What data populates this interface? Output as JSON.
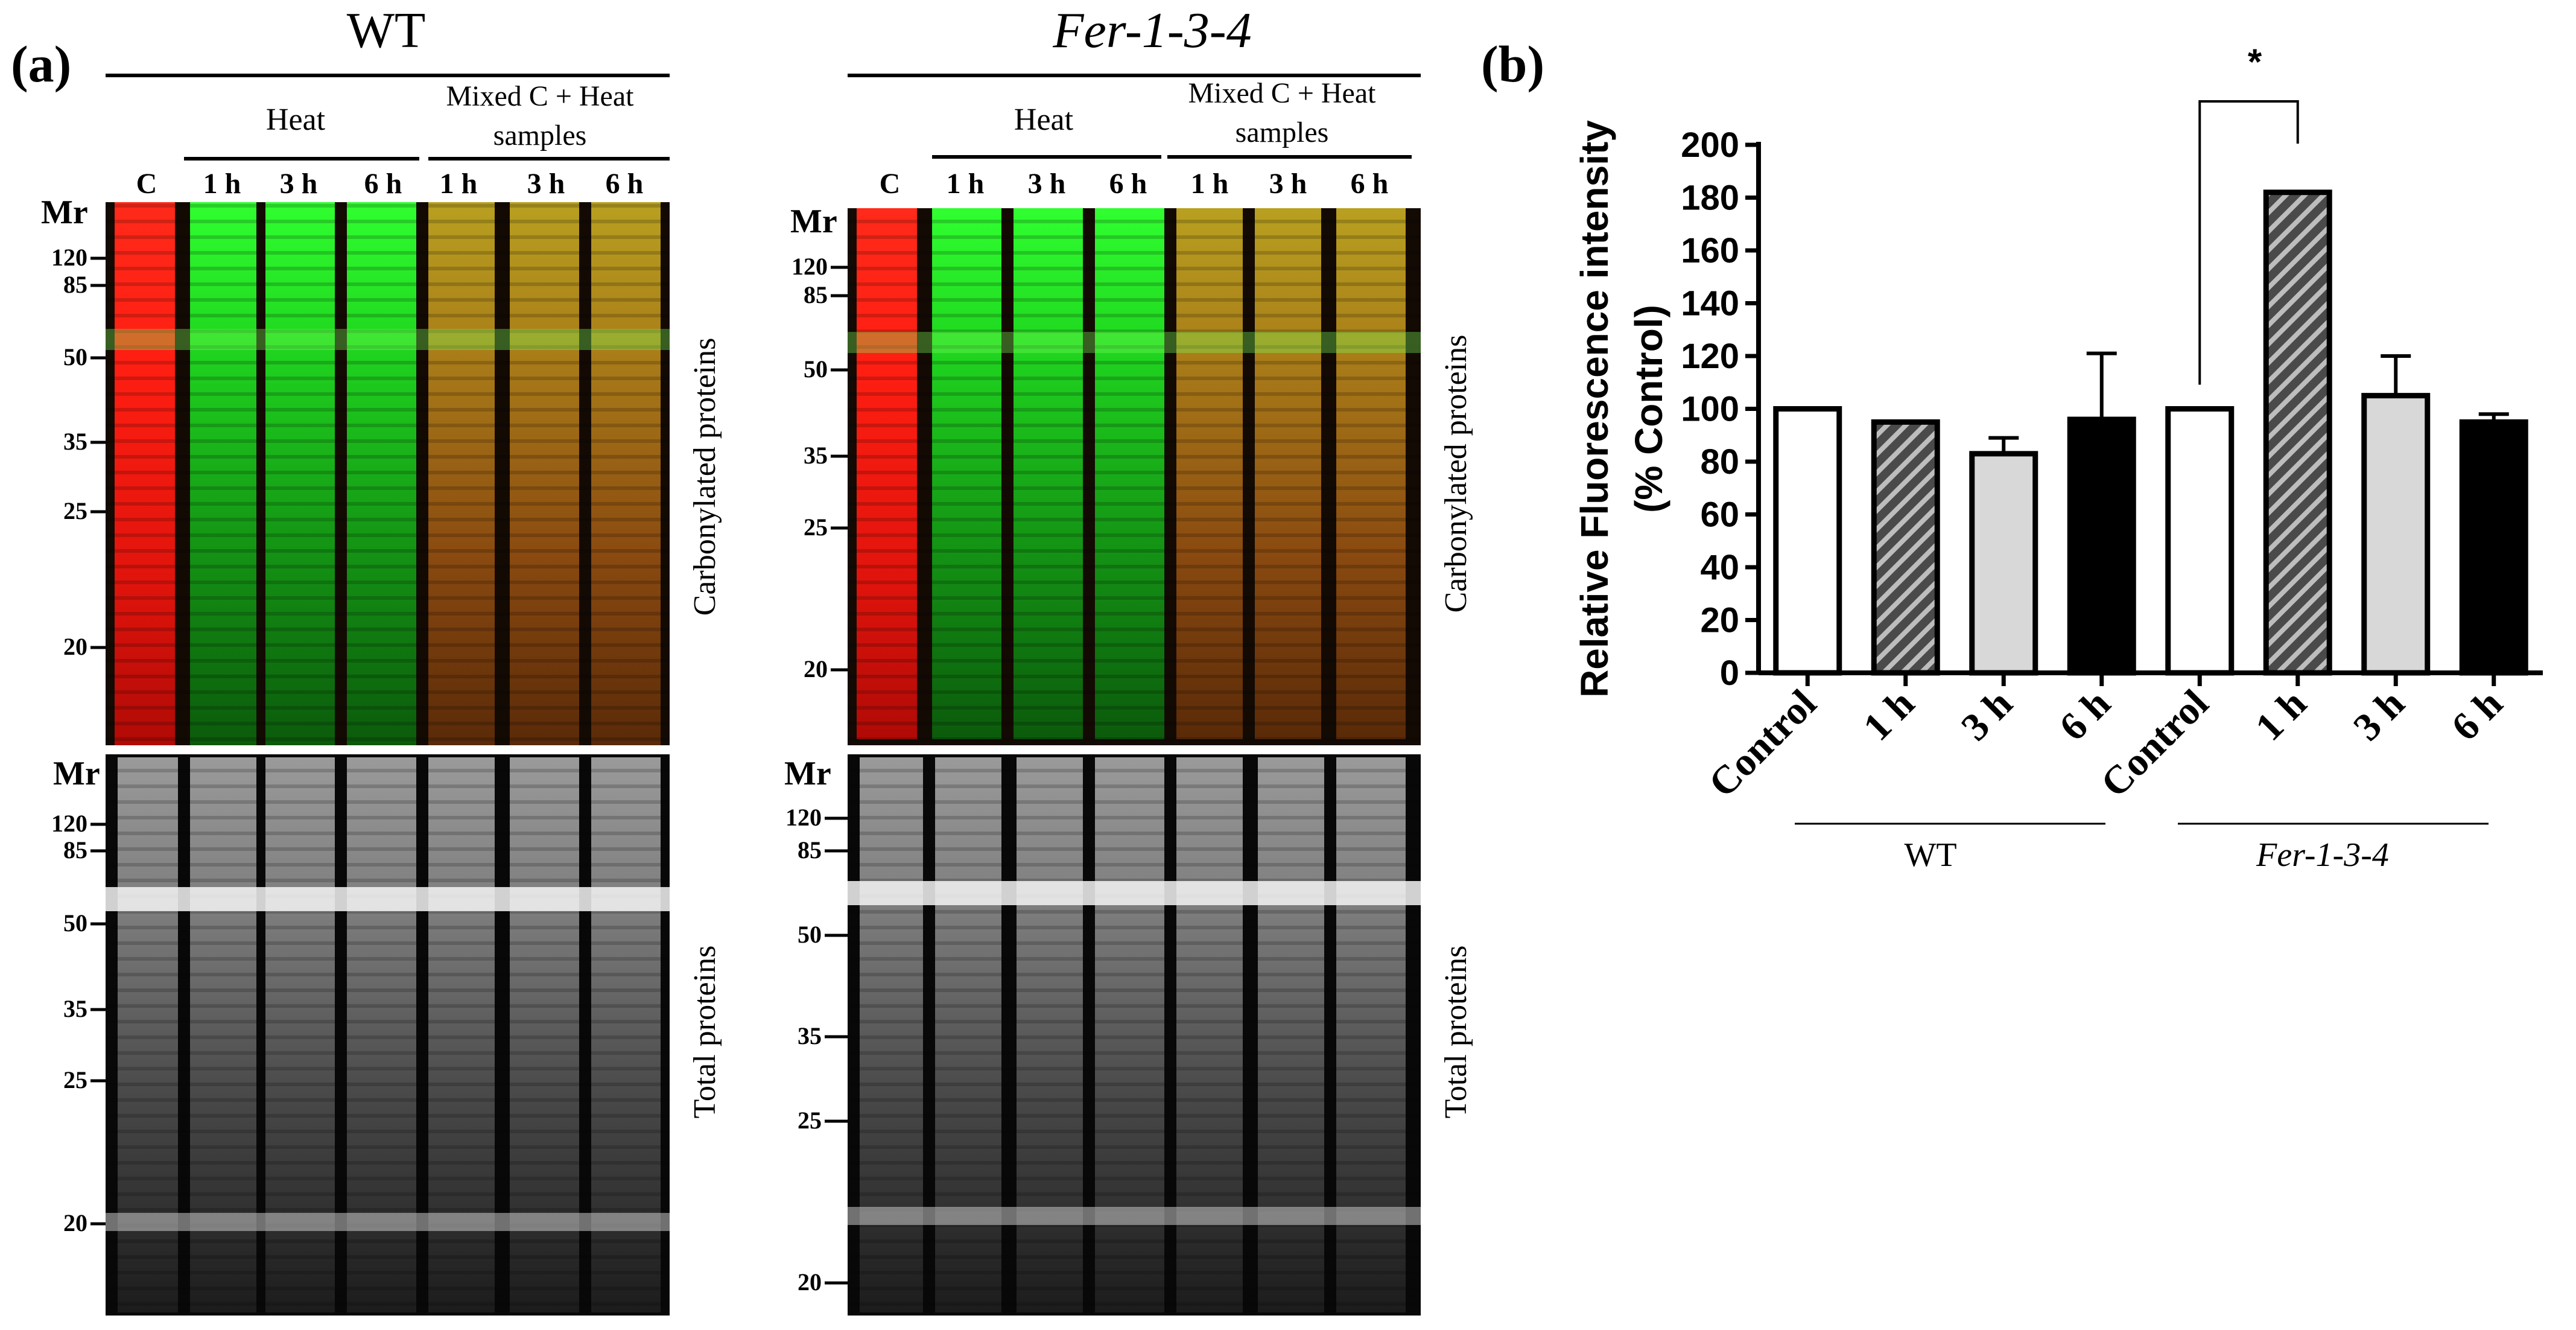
{
  "panel_a": {
    "label": "(a)",
    "wt": {
      "title": "WT",
      "group_heat": "Heat",
      "group_mixed_line1": "Mixed C + Heat",
      "group_mixed_line2": "samples",
      "lanes": [
        "C",
        "1 h",
        "3 h",
        "6 h",
        "1 h",
        "3 h",
        "6 h"
      ],
      "mr_top": "Mr",
      "mr_bottom": "Mr",
      "markers_top": [
        "120",
        "85",
        "50",
        "35",
        "25",
        "20"
      ],
      "markers_bottom": [
        "120",
        "85",
        "50",
        "35",
        "25",
        "20"
      ]
    },
    "mut": {
      "title": "Fer-1-3-4",
      "group_heat": "Heat",
      "group_mixed_line1": "Mixed C + Heat",
      "group_mixed_line2": "samples",
      "lanes": [
        "C",
        "1 h",
        "3 h",
        "6 h",
        "1 h",
        "3 h",
        "6 h"
      ],
      "mr_top": "Mr",
      "mr_bottom": "Mr",
      "markers_top": [
        "120",
        "85",
        "50",
        "35",
        "25",
        "20"
      ],
      "markers_bottom": [
        "120",
        "85",
        "50",
        "35",
        "25",
        "20"
      ]
    },
    "side_label_top": "Carbonylated proteins",
    "side_label_bottom": "Total proteins"
  },
  "panel_b": {
    "label": "(b)"
  },
  "chart_data": {
    "type": "bar",
    "title": "",
    "ylabel_line1": "Relative Fluorescence intensity",
    "ylabel_line2": "(% Control)",
    "ylim": [
      0,
      200
    ],
    "yticks": [
      0,
      20,
      40,
      60,
      80,
      100,
      120,
      140,
      160,
      180,
      200
    ],
    "categories": [
      "Control",
      "1 h",
      "3 h",
      "6 h",
      "Control",
      "1 h",
      "3 h",
      "6 h"
    ],
    "values": [
      100,
      95,
      83,
      96,
      100,
      182,
      105,
      95
    ],
    "errors": [
      0,
      0,
      6,
      25,
      0,
      0,
      15,
      3
    ],
    "fills": [
      "white",
      "hatch",
      "light-gray",
      "black",
      "white",
      "hatch",
      "light-gray",
      "black"
    ],
    "groups": [
      {
        "name": "WT",
        "italic": false
      },
      {
        "name": "Fer-1-3-4",
        "italic": true
      }
    ],
    "significance": "*",
    "colors": {
      "hatch_bg": "#4a4a4a",
      "light_gray": "#d8d8d8",
      "black": "#000000"
    }
  }
}
